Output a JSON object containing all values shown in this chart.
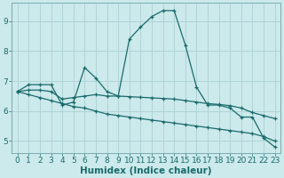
{
  "xlabel": "Humidex (Indice chaleur)",
  "bg_color": "#cce9eb",
  "grid_color": "#b0d4d7",
  "line_color": "#1a6b6b",
  "xlim": [
    -0.5,
    23.5
  ],
  "ylim": [
    4.6,
    9.6
  ],
  "yticks": [
    5,
    6,
    7,
    8,
    9
  ],
  "xticks": [
    0,
    1,
    2,
    3,
    4,
    5,
    6,
    7,
    8,
    9,
    10,
    11,
    12,
    13,
    14,
    15,
    16,
    17,
    18,
    19,
    20,
    21,
    22,
    23
  ],
  "series": [
    {
      "x": [
        0,
        1,
        2,
        3,
        4,
        5,
        6,
        7,
        8,
        9,
        10,
        11,
        12,
        13,
        14,
        15,
        16,
        17,
        18,
        19,
        20,
        21,
        22,
        23
      ],
      "y": [
        6.65,
        6.88,
        6.88,
        6.88,
        6.2,
        6.3,
        7.45,
        7.1,
        6.65,
        6.5,
        8.4,
        8.8,
        9.15,
        9.35,
        9.35,
        8.2,
        6.8,
        6.2,
        6.2,
        6.1,
        5.8,
        5.8,
        5.1,
        4.8
      ]
    },
    {
      "x": [
        0,
        1,
        2,
        3,
        4,
        5,
        6,
        7,
        8,
        9,
        10,
        11,
        12,
        13,
        14,
        15,
        16,
        17,
        18,
        19,
        20,
        21,
        22,
        23
      ],
      "y": [
        6.65,
        6.7,
        6.7,
        6.65,
        6.4,
        6.45,
        6.5,
        6.55,
        6.5,
        6.5,
        6.48,
        6.46,
        6.44,
        6.42,
        6.4,
        6.35,
        6.3,
        6.25,
        6.22,
        6.18,
        6.1,
        5.95,
        5.85,
        5.75
      ]
    },
    {
      "x": [
        0,
        1,
        2,
        3,
        4,
        5,
        6,
        7,
        8,
        9,
        10,
        11,
        12,
        13,
        14,
        15,
        16,
        17,
        18,
        19,
        20,
        21,
        22,
        23
      ],
      "y": [
        6.65,
        6.55,
        6.45,
        6.35,
        6.25,
        6.15,
        6.1,
        6.0,
        5.9,
        5.85,
        5.8,
        5.75,
        5.7,
        5.65,
        5.6,
        5.55,
        5.5,
        5.45,
        5.4,
        5.35,
        5.3,
        5.25,
        5.15,
        5.0
      ]
    }
  ],
  "font_color": "#1a6b6b",
  "tick_fontsize": 6.5,
  "label_fontsize": 7.5
}
